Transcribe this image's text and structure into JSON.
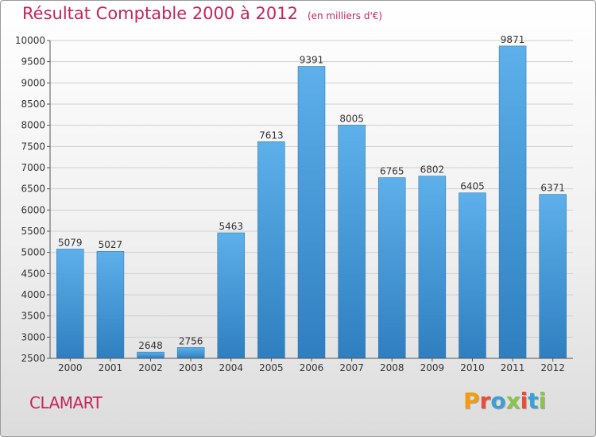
{
  "title": "Résultat Comptable 2000 à 2012",
  "subtitle": "(en milliers d'€)",
  "city": "CLAMART",
  "logo": {
    "text": "Proxiti",
    "colors": [
      "#f39c12",
      "#e74c3c",
      "#3aa0d8",
      "#8bc34a",
      "#e74c3c",
      "#3aa0d8",
      "#8bc34a"
    ]
  },
  "colors": {
    "title": "#c8235a",
    "bar_top": "#5db0ea",
    "bar_bottom": "#2f7fc0"
  },
  "chart_data": {
    "type": "bar",
    "title": "Résultat Comptable 2000 à 2012",
    "subtitle": "(en milliers d'€)",
    "categories": [
      "2000",
      "2001",
      "2002",
      "2003",
      "2004",
      "2005",
      "2006",
      "2007",
      "2008",
      "2009",
      "2010",
      "2011",
      "2012"
    ],
    "values": [
      5079,
      5027,
      2648,
      2756,
      5463,
      7613,
      9391,
      8005,
      6765,
      6802,
      6405,
      9871,
      6371
    ],
    "ylim": [
      2500,
      10000
    ],
    "yticks": [
      2500,
      3000,
      3500,
      4000,
      4500,
      5000,
      5500,
      6000,
      6500,
      7000,
      7500,
      8000,
      8500,
      9000,
      9500,
      10000
    ],
    "grid": true,
    "data_labels": true
  }
}
